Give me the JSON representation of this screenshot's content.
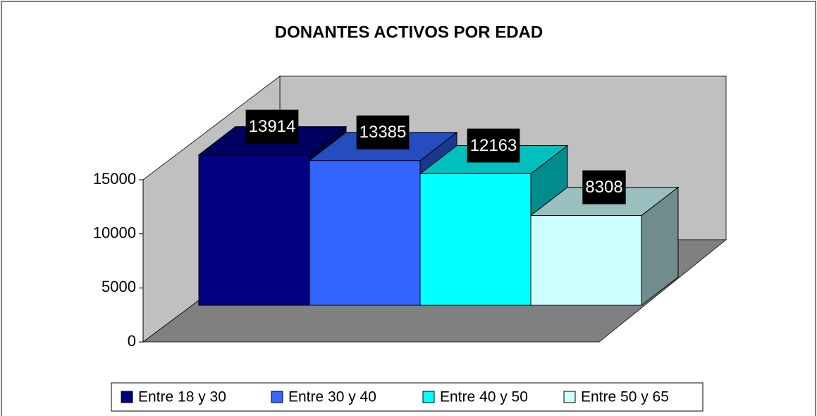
{
  "chart_data": {
    "type": "bar",
    "title": "DONANTES ACTIVOS POR EDAD",
    "categories": [
      null
    ],
    "series": [
      {
        "name": "Entre 18 y 30",
        "color": "#000080",
        "values": [
          13914
        ]
      },
      {
        "name": "Entre 30 y 40",
        "color": "#3366ff",
        "values": [
          13385
        ]
      },
      {
        "name": "Entre 40 y 50",
        "color": "#00ffff",
        "values": [
          12163
        ]
      },
      {
        "name": "Entre 50 y 65",
        "color": "#ccffff",
        "values": [
          8308
        ]
      }
    ],
    "ylim": [
      0,
      15000
    ],
    "yticks": [
      0,
      5000,
      10000,
      15000
    ],
    "legend": "bottom",
    "data_labels": true
  }
}
